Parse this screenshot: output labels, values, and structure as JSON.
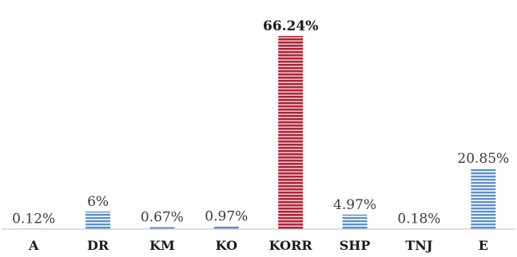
{
  "chart_data": {
    "type": "bar",
    "categories": [
      "A",
      "DR",
      "KM",
      "KO",
      "KORR",
      "SHP",
      "TNJ",
      "E"
    ],
    "values": [
      0.12,
      6,
      0.67,
      0.97,
      66.24,
      4.97,
      0.18,
      20.85
    ],
    "data_labels": [
      "0.12%",
      "6%",
      "0.67%",
      "0.97%",
      "66.24%",
      "4.97%",
      "0.18%",
      "20.85%"
    ],
    "highlight_category": "KORR",
    "ylim": [
      0,
      66.24
    ],
    "grid": false,
    "legend": "none",
    "colors": {
      "bar": "#5b8fd0",
      "bar_stripe": "#ffffff",
      "highlight": "#b0273a",
      "highlight_stripe": "#f2d6da",
      "axis": "#bfbfbf"
    }
  }
}
